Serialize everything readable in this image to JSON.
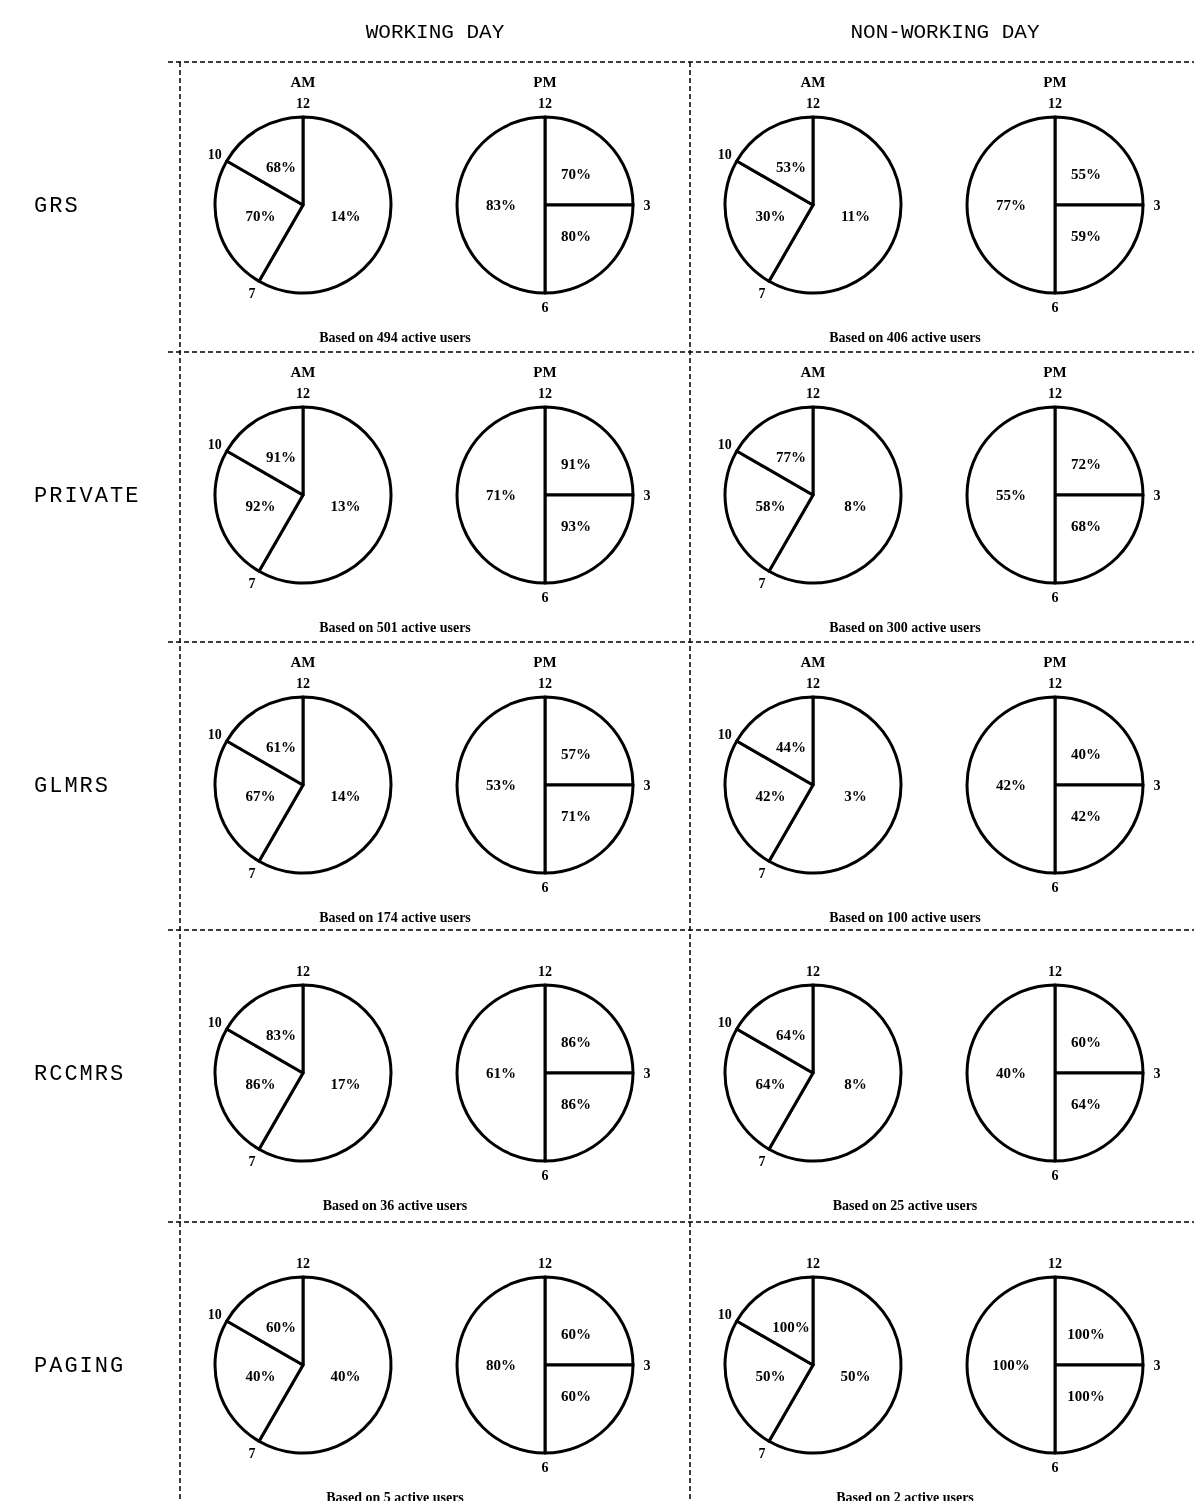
{
  "chart_data": [
    {
      "type": "other",
      "title": "AM",
      "ylabel": "GRS",
      "annotations": [
        "WORKING DAY",
        "Based on 494 active users"
      ],
      "categories": [
        "12",
        "7",
        "10"
      ],
      "values": [
        14,
        70,
        68
      ],
      "value_labels": [
        "14%",
        "70%",
        "68%"
      ]
    },
    {
      "type": "other",
      "title": "PM",
      "categories": [
        "12",
        "3",
        "6"
      ],
      "values": [
        70,
        80,
        83
      ],
      "value_labels": [
        "70%",
        "80%",
        "83%"
      ]
    },
    {
      "type": "other",
      "title": "AM",
      "annotations": [
        "NON-WORKING DAY",
        "Based on 406 active users"
      ],
      "categories": [
        "12",
        "7",
        "10"
      ],
      "values": [
        11,
        30,
        53
      ],
      "value_labels": [
        "11%",
        "30%",
        "53%"
      ]
    },
    {
      "type": "other",
      "title": "PM",
      "categories": [
        "12",
        "3",
        "6"
      ],
      "values": [
        55,
        59,
        77
      ],
      "value_labels": [
        "55%",
        "59%",
        "77%"
      ]
    },
    {
      "type": "other",
      "title": "AM",
      "ylabel": "PRIVATE",
      "annotations": [
        "Based on 501 active users"
      ],
      "categories": [
        "12",
        "7",
        "10"
      ],
      "values": [
        13,
        92,
        91
      ],
      "value_labels": [
        "13%",
        "92%",
        "91%"
      ]
    },
    {
      "type": "other",
      "title": "PM",
      "categories": [
        "12",
        "3",
        "6"
      ],
      "values": [
        91,
        93,
        71
      ],
      "value_labels": [
        "91%",
        "93%",
        "71%"
      ]
    },
    {
      "type": "other",
      "title": "AM",
      "annotations": [
        "Based on 300 active users"
      ],
      "categories": [
        "12",
        "7",
        "10"
      ],
      "values": [
        8,
        58,
        77
      ],
      "value_labels": [
        "8%",
        "58%",
        "77%"
      ]
    },
    {
      "type": "other",
      "title": "PM",
      "categories": [
        "12",
        "3",
        "6"
      ],
      "values": [
        72,
        68,
        55
      ],
      "value_labels": [
        "72%",
        "68%",
        "55%"
      ]
    },
    {
      "type": "other",
      "title": "AM",
      "ylabel": "GLMRS",
      "annotations": [
        "Based on 174 active users"
      ],
      "categories": [
        "12",
        "7",
        "10"
      ],
      "values": [
        14,
        67,
        61
      ],
      "value_labels": [
        "14%",
        "67%",
        "61%"
      ]
    },
    {
      "type": "other",
      "title": "PM",
      "categories": [
        "12",
        "3",
        "6"
      ],
      "values": [
        57,
        71,
        53
      ],
      "value_labels": [
        "57%",
        "71%",
        "53%"
      ]
    },
    {
      "type": "other",
      "title": "AM",
      "annotations": [
        "Based on 100 active users"
      ],
      "categories": [
        "12",
        "7",
        "10"
      ],
      "values": [
        3,
        42,
        44
      ],
      "value_labels": [
        "3%",
        "42%",
        "44%"
      ]
    },
    {
      "type": "other",
      "title": "PM",
      "categories": [
        "12",
        "3",
        "6"
      ],
      "values": [
        40,
        42,
        42
      ],
      "value_labels": [
        "40%",
        "42%",
        "42%"
      ]
    },
    {
      "type": "other",
      "ylabel": "RCCMRS",
      "annotations": [
        "Based on 36 active users"
      ],
      "categories": [
        "12",
        "7",
        "10"
      ],
      "values": [
        17,
        86,
        83
      ],
      "value_labels": [
        "17%",
        "86%",
        "83%"
      ]
    },
    {
      "type": "other",
      "categories": [
        "12",
        "3",
        "6"
      ],
      "values": [
        86,
        86,
        61
      ],
      "value_labels": [
        "86%",
        "86%",
        "61%"
      ]
    },
    {
      "type": "other",
      "annotations": [
        "Based on 25 active users"
      ],
      "categories": [
        "12",
        "7",
        "10"
      ],
      "values": [
        8,
        64,
        64
      ],
      "value_labels": [
        "8%",
        "64%",
        "64%"
      ]
    },
    {
      "type": "other",
      "categories": [
        "12",
        "3",
        "6"
      ],
      "values": [
        60,
        64,
        40
      ],
      "value_labels": [
        "60%",
        "64%",
        "40%"
      ]
    },
    {
      "type": "other",
      "ylabel": "PAGING",
      "annotations": [
        "Based on 5 active users"
      ],
      "categories": [
        "12",
        "7",
        "10"
      ],
      "values": [
        40,
        40,
        60
      ],
      "value_labels": [
        "40%",
        "40%",
        "60%"
      ]
    },
    {
      "type": "other",
      "categories": [
        "12",
        "3",
        "6"
      ],
      "values": [
        60,
        60,
        80
      ],
      "value_labels": [
        "60%",
        "60%",
        "80%"
      ]
    },
    {
      "type": "other",
      "annotations": [
        "Based on 2 active users"
      ],
      "categories": [
        "12",
        "7",
        "10"
      ],
      "values": [
        50,
        50,
        100
      ],
      "value_labels": [
        "50%",
        "50%",
        "100%"
      ]
    },
    {
      "type": "other",
      "categories": [
        "12",
        "3",
        "6"
      ],
      "values": [
        100,
        100,
        100
      ],
      "value_labels": [
        "100%",
        "100%",
        "100%"
      ]
    }
  ]
}
